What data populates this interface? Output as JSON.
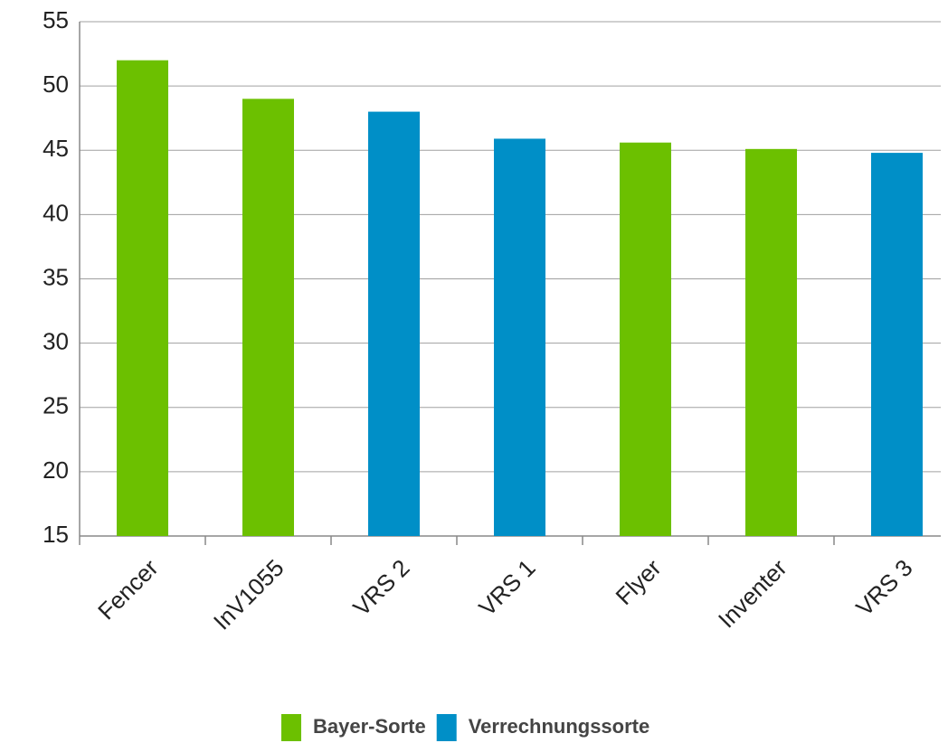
{
  "chart_data": {
    "type": "bar",
    "categories": [
      "Fencer",
      "InV1055",
      "VRS 2",
      "VRS 1",
      "Flyer",
      "Inventer",
      "VRS 3"
    ],
    "series": [
      {
        "name": "Bayer-Sorte",
        "color": "#6cc000",
        "values": [
          52.0,
          49.0,
          null,
          null,
          45.6,
          45.1,
          null
        ]
      },
      {
        "name": "Verrechnungssorte",
        "color": "#008fc7",
        "values": [
          null,
          null,
          48.0,
          45.9,
          null,
          null,
          44.8
        ]
      }
    ],
    "ylim": [
      15,
      55
    ],
    "yticks": [
      15,
      20,
      25,
      30,
      35,
      40,
      45,
      50,
      55
    ],
    "grid": true
  }
}
